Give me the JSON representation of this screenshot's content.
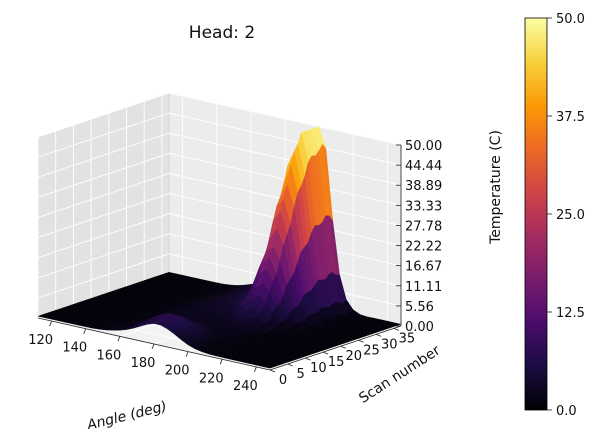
{
  "chart_data": {
    "type": "surface",
    "title": "Head: 2",
    "xlabel": "Angle (deg)",
    "ylabel": "Scan number",
    "zlabel": "Temperature (C)",
    "xlim": [
      112,
      248
    ],
    "ylim": [
      0,
      37
    ],
    "zlim": [
      0,
      50
    ],
    "x_ticks": [
      "120",
      "140",
      "160",
      "180",
      "200",
      "220",
      "240"
    ],
    "y_ticks": [
      "0",
      "5",
      "10",
      "15",
      "20",
      "25",
      "30",
      "35"
    ],
    "z_ticks": [
      "0.00",
      "5.56",
      "11.11",
      "16.67",
      "22.22",
      "27.78",
      "33.33",
      "38.89",
      "44.44",
      "50.00"
    ],
    "colorbar_ticks": [
      "0.0",
      "12.5",
      "25.0",
      "37.5",
      "50.0"
    ],
    "colorbar_range": [
      0,
      50
    ],
    "colormap": "inferno",
    "colormap_stops": [
      "#000004",
      "#1b0c41",
      "#4a0c6b",
      "#781c6d",
      "#a52c60",
      "#cf4446",
      "#ed6925",
      "#fb9b06",
      "#f7d13d",
      "#fcffa4"
    ],
    "grid": true,
    "peak": {
      "angle": 200,
      "scan": 37,
      "temperature": 50
    },
    "grid_size": {
      "angle_steps": 34,
      "scan_steps": 37
    }
  }
}
